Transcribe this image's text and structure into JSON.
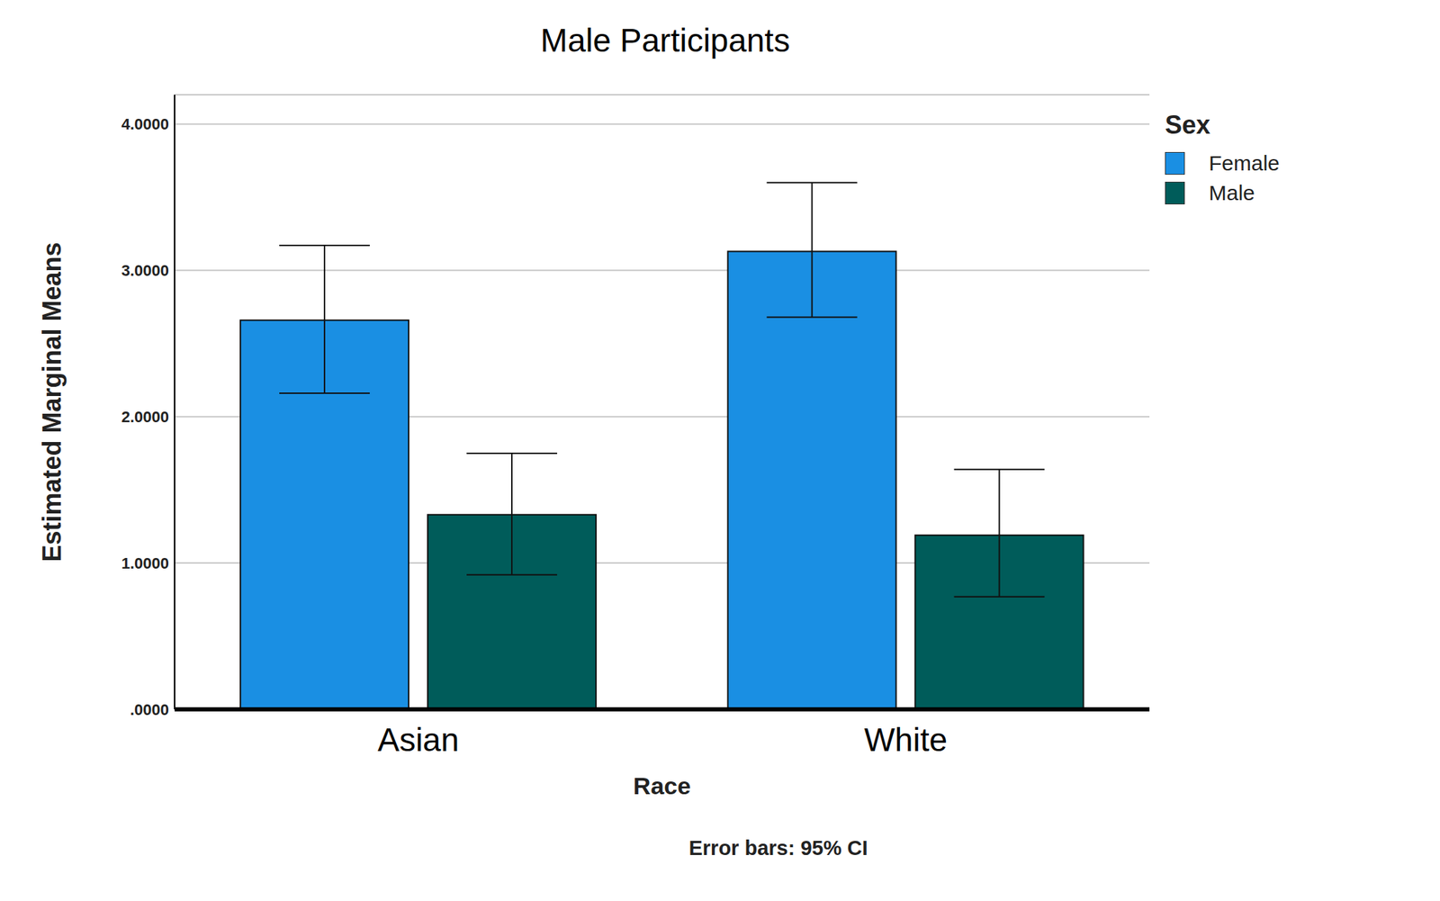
{
  "chart_data": {
    "type": "bar",
    "title": "Male Participants",
    "x_label": "Race",
    "y_label": "Estimated Marginal Means",
    "legend_title": "Sex",
    "annotations": [
      "Error bars: 95% CI"
    ],
    "categories": [
      "Asian",
      "White"
    ],
    "series": [
      {
        "name": "Female",
        "color": "#1a8fe3",
        "values": [
          2.66,
          3.13
        ],
        "ci": [
          [
            2.16,
            3.17
          ],
          [
            2.68,
            3.6
          ]
        ]
      },
      {
        "name": "Male",
        "color": "#005c5a",
        "values": [
          1.33,
          1.19
        ],
        "ci": [
          [
            0.92,
            1.75
          ],
          [
            0.77,
            1.64
          ]
        ]
      }
    ],
    "ylim": [
      0,
      4.2
    ],
    "yticks": [
      {
        "value": 0,
        "label": ".0000"
      },
      {
        "value": 1,
        "label": "1.0000"
      },
      {
        "value": 2,
        "label": "2.0000"
      },
      {
        "value": 3,
        "label": "3.0000"
      },
      {
        "value": 4,
        "label": "4.0000"
      }
    ],
    "grid": true,
    "legend": "right"
  }
}
